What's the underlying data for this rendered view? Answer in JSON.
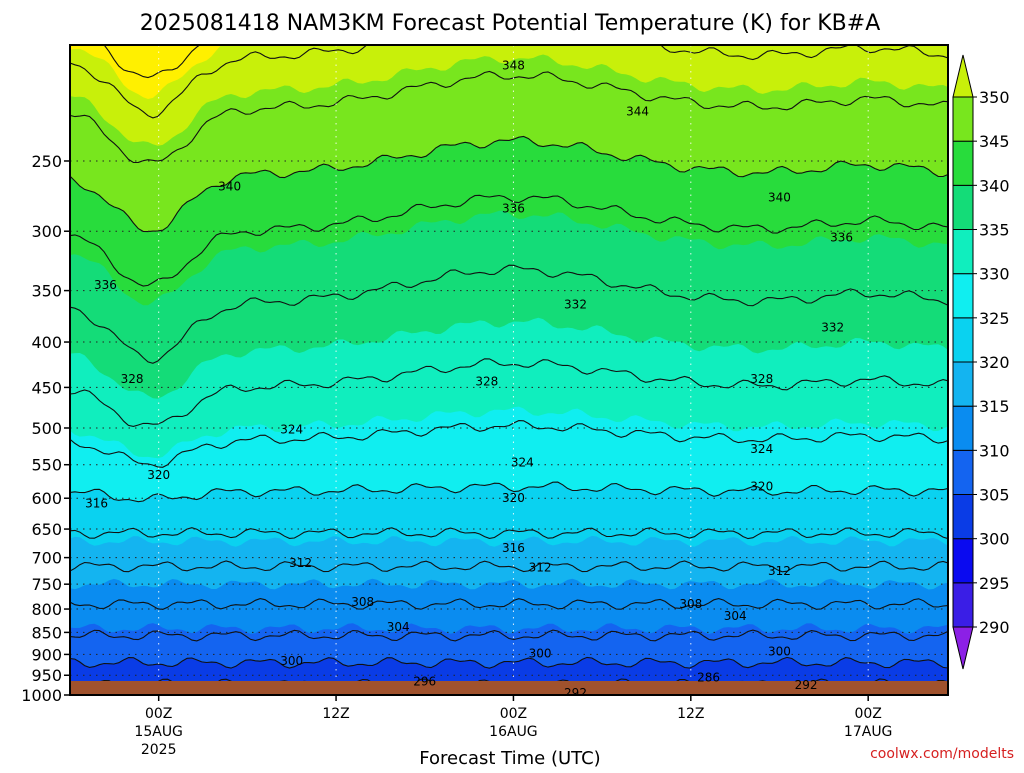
{
  "chart_data": {
    "type": "heatmap",
    "title": "2025081418 NAM3KM Forecast Potential Temperature (K) for KB#A",
    "xlabel": "Forecast Time (UTC)",
    "ylabel": "",
    "credit": "coolwx.com/modelts",
    "y_scale": "log",
    "ylim": [
      1000,
      185
    ],
    "y_ticks": [
      1000,
      950,
      900,
      850,
      800,
      750,
      700,
      650,
      600,
      550,
      500,
      450,
      400,
      350,
      300,
      250
    ],
    "y_tick_labels": [
      "1000",
      "950",
      "900",
      "850",
      "800",
      "750",
      "700",
      "650",
      "600",
      "550",
      "500",
      "450",
      "400",
      "350",
      "300",
      "250"
    ],
    "x_range_hours": [
      -5,
      44.5
    ],
    "x_ticks": [
      {
        "hour": 0,
        "lines": [
          "00Z",
          "15AUG",
          "2025"
        ]
      },
      {
        "hour": 10,
        "lines": [
          "12Z"
        ]
      },
      {
        "hour": 20,
        "lines": [
          "00Z",
          "16AUG"
        ]
      },
      {
        "hour": 30,
        "lines": [
          "12Z"
        ]
      },
      {
        "hour": 40,
        "lines": [
          "00Z",
          "17AUG"
        ]
      }
    ],
    "grid": true,
    "colorbar": {
      "levels": [
        285,
        290,
        295,
        300,
        305,
        310,
        315,
        320,
        325,
        330,
        335,
        340,
        345,
        350,
        355
      ],
      "labels": [
        "290",
        "295",
        "300",
        "305",
        "310",
        "315",
        "320",
        "325",
        "330",
        "335",
        "340",
        "345",
        "350"
      ],
      "colors": [
        "#8c20e6",
        "#3a1ee6",
        "#0a0af0",
        "#0a3ce6",
        "#1464f0",
        "#0a8cf0",
        "#14b4f0",
        "#0ad2f0",
        "#10eef0",
        "#10eebe",
        "#14dc78",
        "#28dc3c",
        "#78e61e",
        "#c8f00a",
        "#fff000",
        "#fff000"
      ]
    },
    "surface_color": "#a0522d",
    "contour_interval": 4,
    "theta_profile": {
      "pressure": [
        1000,
        950,
        900,
        850,
        800,
        750,
        700,
        650,
        600,
        550,
        500,
        450,
        400,
        350,
        300,
        250,
        200,
        185
      ],
      "theta": [
        293,
        298.5,
        301,
        304.5,
        307.5,
        310,
        313,
        316.5,
        319.5,
        322,
        325,
        328,
        330.5,
        332.5,
        336,
        341,
        346,
        349.5
      ]
    },
    "contour_labels": [
      {
        "value": "348",
        "hour": 20,
        "pressure": 195
      },
      {
        "value": "344",
        "hour": 27,
        "pressure": 220
      },
      {
        "value": "340",
        "hour": 4,
        "pressure": 267
      },
      {
        "value": "340",
        "hour": 35,
        "pressure": 275
      },
      {
        "value": "336",
        "hour": 20,
        "pressure": 283
      },
      {
        "value": "336",
        "hour": 38.5,
        "pressure": 305
      },
      {
        "value": "336",
        "hour": -3,
        "pressure": 345
      },
      {
        "value": "332",
        "hour": 23.5,
        "pressure": 363
      },
      {
        "value": "332",
        "hour": 38,
        "pressure": 385
      },
      {
        "value": "328",
        "hour": -1.5,
        "pressure": 440
      },
      {
        "value": "328",
        "hour": 18.5,
        "pressure": 443
      },
      {
        "value": "328",
        "hour": 34,
        "pressure": 440
      },
      {
        "value": "324",
        "hour": 7.5,
        "pressure": 502
      },
      {
        "value": "324",
        "hour": 20.5,
        "pressure": 547
      },
      {
        "value": "324",
        "hour": 34,
        "pressure": 528
      },
      {
        "value": "320",
        "hour": 0,
        "pressure": 565
      },
      {
        "value": "320",
        "hour": 20,
        "pressure": 600
      },
      {
        "value": "320",
        "hour": 34,
        "pressure": 582
      },
      {
        "value": "316",
        "hour": -3.5,
        "pressure": 608
      },
      {
        "value": "316",
        "hour": 20,
        "pressure": 683
      },
      {
        "value": "312",
        "hour": 8,
        "pressure": 710
      },
      {
        "value": "312",
        "hour": 21.5,
        "pressure": 718
      },
      {
        "value": "312",
        "hour": 35,
        "pressure": 725
      },
      {
        "value": "308",
        "hour": 11.5,
        "pressure": 785
      },
      {
        "value": "308",
        "hour": 30,
        "pressure": 790
      },
      {
        "value": "304",
        "hour": 13.5,
        "pressure": 838
      },
      {
        "value": "304",
        "hour": 32.5,
        "pressure": 815
      },
      {
        "value": "300",
        "hour": 7.5,
        "pressure": 915
      },
      {
        "value": "300",
        "hour": 21.5,
        "pressure": 898
      },
      {
        "value": "300",
        "hour": 35,
        "pressure": 893
      },
      {
        "value": "296",
        "hour": 15,
        "pressure": 965
      },
      {
        "value": "292",
        "hour": 23.5,
        "pressure": 995
      },
      {
        "value": "286",
        "hour": 31,
        "pressure": 955
      },
      {
        "value": "292",
        "hour": 36.5,
        "pressure": 975
      }
    ]
  }
}
